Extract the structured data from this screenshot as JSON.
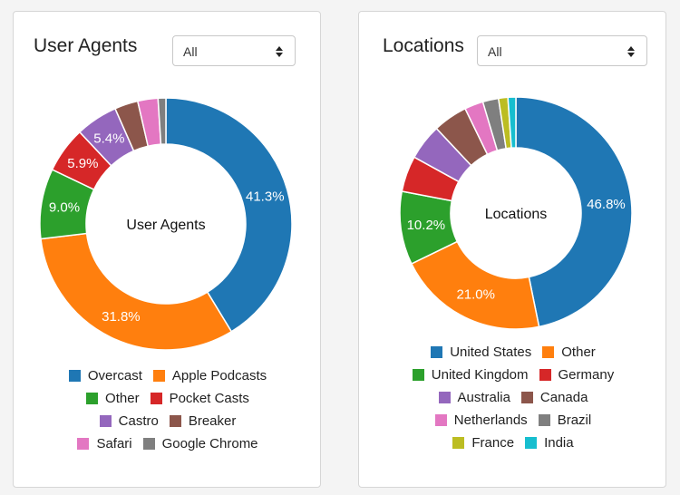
{
  "user_agents": {
    "title": "User Agents",
    "select_value": "All",
    "chart_data": {
      "type": "pie",
      "center_label": "User Agents",
      "slices": [
        {
          "name": "Overcast",
          "value": 41.3,
          "label": "41.3%",
          "color": "#1f77b4"
        },
        {
          "name": "Apple Podcasts",
          "value": 31.8,
          "label": "31.8%",
          "color": "#ff7f0e"
        },
        {
          "name": "Other",
          "value": 9.0,
          "label": "9.0%",
          "color": "#2ca02c"
        },
        {
          "name": "Pocket Casts",
          "value": 5.9,
          "label": "5.9%",
          "color": "#d62728"
        },
        {
          "name": "Castro",
          "value": 5.4,
          "label": "5.4%",
          "color": "#9467bd"
        },
        {
          "name": "Breaker",
          "value": 3.0,
          "label": "",
          "color": "#8c564b"
        },
        {
          "name": "Safari",
          "value": 2.6,
          "label": "",
          "color": "#e377c2"
        },
        {
          "name": "Google Chrome",
          "value": 1.0,
          "label": "",
          "color": "#7f7f7f"
        }
      ]
    }
  },
  "locations": {
    "title": "Locations",
    "select_value": "All",
    "chart_data": {
      "type": "pie",
      "center_label": "Locations",
      "slices": [
        {
          "name": "United States",
          "value": 46.8,
          "label": "46.8%",
          "color": "#1f77b4"
        },
        {
          "name": "Other",
          "value": 21.0,
          "label": "21.0%",
          "color": "#ff7f0e"
        },
        {
          "name": "United Kingdom",
          "value": 10.2,
          "label": "10.2%",
          "color": "#2ca02c"
        },
        {
          "name": "Germany",
          "value": 5.0,
          "label": "",
          "color": "#d62728"
        },
        {
          "name": "Australia",
          "value": 5.0,
          "label": "",
          "color": "#9467bd"
        },
        {
          "name": "Canada",
          "value": 4.8,
          "label": "",
          "color": "#8c564b"
        },
        {
          "name": "Netherlands",
          "value": 2.6,
          "label": "",
          "color": "#e377c2"
        },
        {
          "name": "Brazil",
          "value": 2.2,
          "label": "",
          "color": "#7f7f7f"
        },
        {
          "name": "France",
          "value": 1.3,
          "label": "",
          "color": "#bcbd22"
        },
        {
          "name": "India",
          "value": 1.1,
          "label": "",
          "color": "#17becf"
        }
      ]
    }
  }
}
